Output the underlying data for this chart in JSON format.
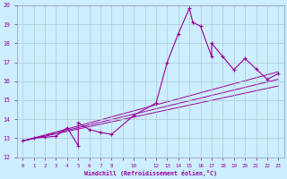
{
  "xlabel": "Windchill (Refroidissement éolien,°C)",
  "bg_color": "#cceeff",
  "grid_color": "#b0c8d0",
  "line_color": "#990099",
  "spine_color": "#8899aa",
  "xlim": [
    -0.5,
    23.5
  ],
  "ylim": [
    12,
    20
  ],
  "xticks": [
    0,
    1,
    2,
    3,
    4,
    5,
    6,
    7,
    8,
    9,
    10,
    11,
    12,
    13,
    14,
    15,
    16,
    17,
    18,
    19,
    20,
    21,
    22,
    23
  ],
  "xtick_labels": [
    "0",
    "1",
    "2",
    "3",
    "4",
    "5",
    "6",
    "7",
    "8",
    "",
    "10",
    "",
    "12",
    "13",
    "14",
    "15",
    "16",
    "17",
    "18",
    "19",
    "20",
    "21",
    "22",
    "23"
  ],
  "yticks": [
    12,
    13,
    14,
    15,
    16,
    17,
    18,
    19,
    20
  ],
  "series_x": [
    0,
    1,
    2,
    3,
    4,
    5,
    5,
    6,
    7,
    8,
    10,
    12,
    13,
    14,
    15,
    15.3,
    16,
    17,
    17,
    18,
    19,
    20,
    21,
    22,
    23
  ],
  "series_y": [
    12.85,
    13.0,
    13.05,
    13.1,
    13.55,
    12.6,
    13.8,
    13.45,
    13.3,
    13.2,
    14.2,
    14.85,
    17.0,
    18.5,
    19.85,
    19.1,
    18.9,
    17.3,
    18.0,
    17.3,
    16.6,
    17.2,
    16.65,
    16.1,
    16.4
  ],
  "line1_x": [
    0,
    23
  ],
  "line1_y": [
    12.85,
    16.5
  ],
  "line2_x": [
    0,
    23
  ],
  "line2_y": [
    12.85,
    15.75
  ],
  "line3_x": [
    0,
    23
  ],
  "line3_y": [
    12.85,
    16.1
  ]
}
